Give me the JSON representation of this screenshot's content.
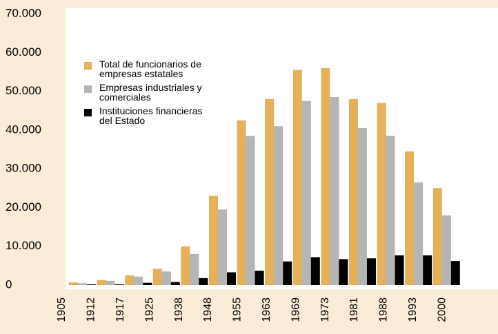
{
  "chart_data": {
    "type": "bar",
    "categories": [
      "1905",
      "1912",
      "1917",
      "1925",
      "1938",
      "1948",
      "1955",
      "1963",
      "1969",
      "1973",
      "1981",
      "1988",
      "1993",
      "2000"
    ],
    "series": [
      {
        "name": "Total de funcionarios de empresas estatales",
        "color": "#e3b05c",
        "values": [
          700,
          1300,
          2500,
          4200,
          10000,
          23000,
          42500,
          48000,
          55500,
          56000,
          48000,
          47000,
          34500,
          25000
        ]
      },
      {
        "name": "Empresas industriales y comerciales",
        "color": "#b5b5b5",
        "values": [
          500,
          1100,
          2200,
          3500,
          8000,
          19500,
          38500,
          41000,
          47500,
          48500,
          40500,
          38500,
          26500,
          18000
        ]
      },
      {
        "name": "Instituciones financieras del Estado",
        "color": "#000000",
        "values": [
          200,
          200,
          600,
          800,
          1800,
          3300,
          3700,
          6100,
          7200,
          6700,
          6900,
          7700,
          7700,
          6200
        ]
      }
    ],
    "ylim": [
      0,
      70000
    ],
    "yticks": [
      0,
      {
        "value": 10000,
        "label": "10.000"
      },
      {
        "value": 20000,
        "label": "20.000"
      },
      {
        "value": 30000,
        "label": "30.000"
      },
      {
        "value": 40000,
        "label": "40.000"
      },
      {
        "value": 50000,
        "label": "50.000"
      },
      {
        "value": 60000,
        "label": "60.000"
      },
      {
        "value": 70000,
        "label": "70.000"
      }
    ]
  }
}
